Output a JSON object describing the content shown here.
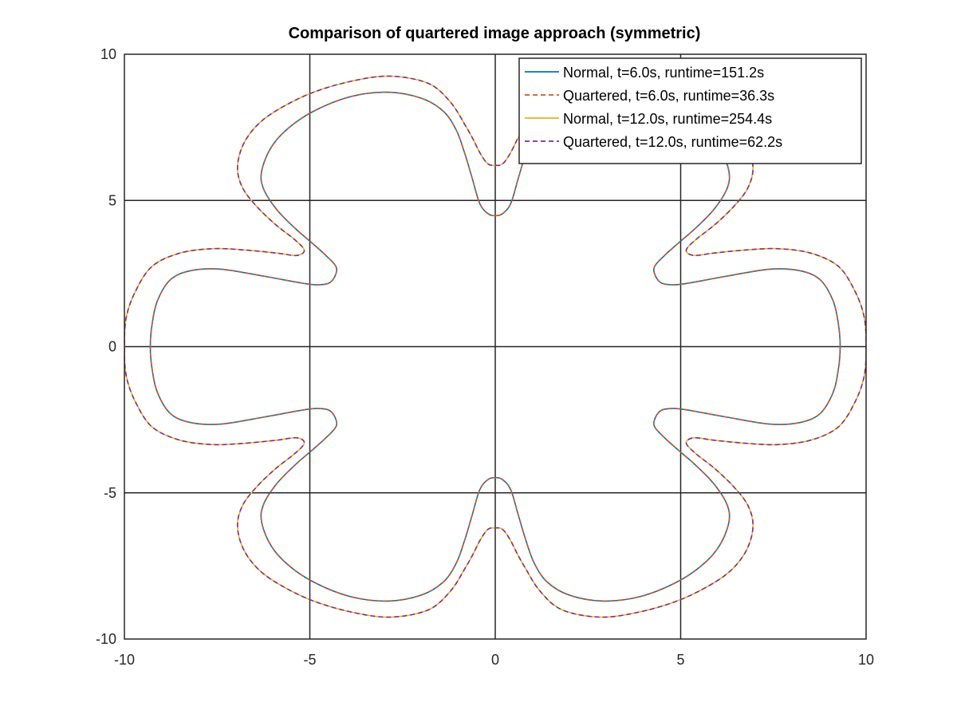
{
  "chart_data": {
    "type": "line",
    "title": "Comparison of quartered image approach (symmetric)",
    "xlabel": "",
    "ylabel": "",
    "xlim": [
      -10,
      10
    ],
    "ylim": [
      -10,
      10
    ],
    "xticks": [
      -10,
      -5,
      0,
      5,
      10
    ],
    "yticks": [
      -10,
      -5,
      0,
      5,
      10
    ],
    "xtick_labels": [
      "-10",
      "-5",
      "0",
      "5",
      "10"
    ],
    "ytick_labels": [
      "-10",
      "-5",
      "0",
      "5",
      "10"
    ],
    "grid": true,
    "legend_position": "top-right",
    "series": [
      {
        "name": "Normal, t=6.0s, runtime=151.2s",
        "color": "#0072bd",
        "dash": "solid",
        "symmetry": "four-fold mirror about x=0 and y=0",
        "first_quadrant_points": [
          [
            0.0,
            4.48
          ],
          [
            0.2,
            4.55
          ],
          [
            0.42,
            4.9
          ],
          [
            0.62,
            5.75
          ],
          [
            0.82,
            6.6
          ],
          [
            1.05,
            7.4
          ],
          [
            1.4,
            8.05
          ],
          [
            2.0,
            8.5
          ],
          [
            2.9,
            8.7
          ],
          [
            3.9,
            8.55
          ],
          [
            4.9,
            8.05
          ],
          [
            5.6,
            7.45
          ],
          [
            6.05,
            6.8
          ],
          [
            6.3,
            6.0
          ],
          [
            6.25,
            5.4
          ],
          [
            5.9,
            4.7
          ],
          [
            5.4,
            4.05
          ],
          [
            4.9,
            3.5
          ],
          [
            4.55,
            3.1
          ],
          [
            4.3,
            2.75
          ],
          [
            4.3,
            2.48
          ],
          [
            4.45,
            2.2
          ],
          [
            4.7,
            2.12
          ],
          [
            5.1,
            2.15
          ],
          [
            6.2,
            2.4
          ],
          [
            7.4,
            2.65
          ],
          [
            8.2,
            2.6
          ],
          [
            8.75,
            2.3
          ],
          [
            9.1,
            1.6
          ],
          [
            9.25,
            0.8
          ],
          [
            9.3,
            0.0
          ]
        ]
      },
      {
        "name": "Quartered, t=6.0s, runtime=36.3s",
        "color": "#d95319",
        "dash": "dashed",
        "symmetry": "four-fold mirror about x=0 and y=0",
        "first_quadrant_points": [
          [
            0.0,
            4.48
          ],
          [
            0.2,
            4.55
          ],
          [
            0.42,
            4.9
          ],
          [
            0.62,
            5.75
          ],
          [
            0.82,
            6.6
          ],
          [
            1.05,
            7.4
          ],
          [
            1.4,
            8.05
          ],
          [
            2.0,
            8.5
          ],
          [
            2.9,
            8.7
          ],
          [
            3.9,
            8.55
          ],
          [
            4.9,
            8.05
          ],
          [
            5.6,
            7.45
          ],
          [
            6.05,
            6.8
          ],
          [
            6.3,
            6.0
          ],
          [
            6.25,
            5.4
          ],
          [
            5.9,
            4.7
          ],
          [
            5.4,
            4.05
          ],
          [
            4.9,
            3.5
          ],
          [
            4.55,
            3.1
          ],
          [
            4.3,
            2.75
          ],
          [
            4.3,
            2.48
          ],
          [
            4.45,
            2.2
          ],
          [
            4.7,
            2.12
          ],
          [
            5.1,
            2.15
          ],
          [
            6.2,
            2.4
          ],
          [
            7.4,
            2.65
          ],
          [
            8.2,
            2.6
          ],
          [
            8.75,
            2.3
          ],
          [
            9.1,
            1.6
          ],
          [
            9.25,
            0.8
          ],
          [
            9.3,
            0.0
          ]
        ]
      },
      {
        "name": "Normal, t=12.0s, runtime=254.4s",
        "color": "#edb120",
        "dash": "solid",
        "symmetry": "four-fold mirror about x=0 and y=0",
        "first_quadrant_points": [
          [
            0.0,
            6.2
          ],
          [
            0.2,
            6.25
          ],
          [
            0.4,
            6.6
          ],
          [
            0.6,
            7.1
          ],
          [
            0.8,
            7.55
          ],
          [
            1.2,
            8.35
          ],
          [
            1.8,
            9.0
          ],
          [
            2.8,
            9.25
          ],
          [
            3.8,
            9.1
          ],
          [
            4.9,
            8.7
          ],
          [
            5.8,
            8.15
          ],
          [
            6.4,
            7.6
          ],
          [
            6.8,
            6.9
          ],
          [
            6.95,
            6.1
          ],
          [
            6.8,
            5.4
          ],
          [
            6.4,
            4.75
          ],
          [
            5.9,
            4.15
          ],
          [
            5.4,
            3.65
          ],
          [
            5.15,
            3.3
          ],
          [
            5.35,
            3.12
          ],
          [
            5.9,
            3.2
          ],
          [
            6.7,
            3.3
          ],
          [
            7.6,
            3.35
          ],
          [
            8.5,
            3.2
          ],
          [
            9.25,
            2.75
          ],
          [
            9.7,
            1.9
          ],
          [
            9.95,
            1.0
          ],
          [
            10.0,
            0.0
          ]
        ]
      },
      {
        "name": "Quartered, t=12.0s, runtime=62.2s",
        "color": "#7e2f8e",
        "dash": "dashed",
        "symmetry": "four-fold mirror about x=0 and y=0",
        "first_quadrant_points": [
          [
            0.0,
            6.2
          ],
          [
            0.2,
            6.25
          ],
          [
            0.4,
            6.6
          ],
          [
            0.6,
            7.1
          ],
          [
            0.8,
            7.55
          ],
          [
            1.2,
            8.35
          ],
          [
            1.8,
            9.0
          ],
          [
            2.8,
            9.25
          ],
          [
            3.8,
            9.1
          ],
          [
            4.9,
            8.7
          ],
          [
            5.8,
            8.15
          ],
          [
            6.4,
            7.6
          ],
          [
            6.8,
            6.9
          ],
          [
            6.95,
            6.1
          ],
          [
            6.8,
            5.4
          ],
          [
            6.4,
            4.75
          ],
          [
            5.9,
            4.15
          ],
          [
            5.4,
            3.65
          ],
          [
            5.15,
            3.3
          ],
          [
            5.35,
            3.12
          ],
          [
            5.9,
            3.2
          ],
          [
            6.7,
            3.3
          ],
          [
            7.6,
            3.35
          ],
          [
            8.5,
            3.2
          ],
          [
            9.25,
            2.75
          ],
          [
            9.7,
            1.9
          ],
          [
            9.95,
            1.0
          ],
          [
            10.0,
            0.0
          ]
        ]
      }
    ]
  }
}
